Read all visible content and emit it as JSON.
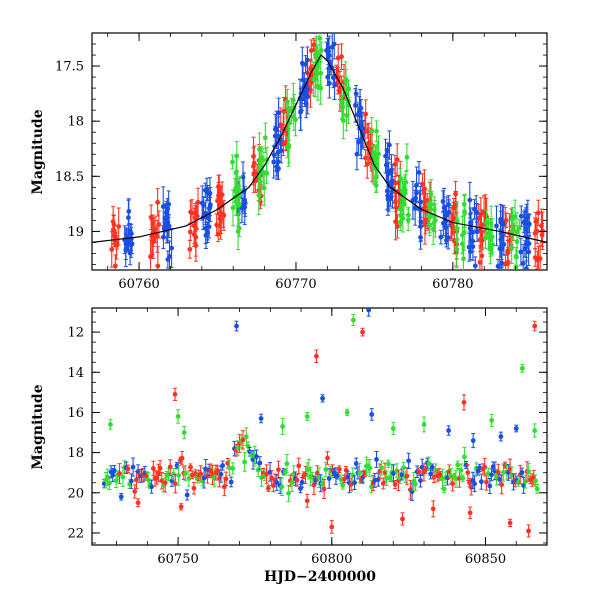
{
  "chart_data": [
    {
      "type": "scatter",
      "panel": "top",
      "title": "",
      "xlabel": "",
      "ylabel": "Magnitude",
      "xlim": [
        60757,
        60786
      ],
      "ylim": [
        19.35,
        17.2
      ],
      "y_inverted": true,
      "xticks": [
        60760,
        60770,
        60780
      ],
      "yticks": [
        17.5,
        18,
        18.5,
        19
      ],
      "ytick_labels": [
        "17.5",
        "18",
        "18.5",
        "19"
      ],
      "grid": false,
      "legend": "none",
      "series": [
        {
          "color": "#ff3322",
          "cluster_days": [
            60758.5,
            60761.0,
            60763.5,
            60765.2,
            60767.5,
            60769.3,
            60771.0,
            60772.8,
            60774.6,
            60776.5,
            60778.3,
            60780.1,
            60781.9,
            60783.6,
            60785.5
          ]
        },
        {
          "color": "#1a4fe0",
          "cluster_days": [
            60759.3,
            60761.8,
            60764.3,
            60766.5,
            60768.8,
            60770.5,
            60772.2,
            60774.0,
            60775.9,
            60777.7,
            60779.5,
            60781.3,
            60783.0,
            60784.6
          ]
        },
        {
          "color": "#33dd33",
          "cluster_days": [
            60766.2,
            60767.9,
            60769.7,
            60771.4,
            60773.2,
            60775.1,
            60776.9,
            60778.7,
            60780.5,
            60782.3,
            60784.0
          ]
        }
      ],
      "model_curve": {
        "color": "#000000",
        "x": [
          60757,
          60760,
          60763,
          60765,
          60767,
          60768,
          60769,
          60770,
          60771,
          60771.6,
          60772,
          60773,
          60774,
          60775,
          60776,
          60778,
          60780,
          60783,
          60786
        ],
        "y": [
          19.1,
          19.05,
          18.95,
          18.8,
          18.6,
          18.4,
          18.15,
          17.85,
          17.55,
          17.4,
          17.45,
          17.7,
          18.05,
          18.4,
          18.6,
          18.8,
          18.92,
          19.0,
          19.1
        ]
      }
    },
    {
      "type": "scatter",
      "panel": "bottom",
      "title": "",
      "xlabel": "HJD−2400000",
      "ylabel": "Magnitude",
      "xlim": [
        60722,
        60870
      ],
      "ylim": [
        22.6,
        10.8
      ],
      "y_inverted": true,
      "xticks": [
        60750,
        60800,
        60850
      ],
      "yticks": [
        12,
        14,
        16,
        18,
        20,
        22
      ],
      "ytick_labels": [
        "12",
        "14",
        "16",
        "18",
        "20",
        "22"
      ],
      "grid": false,
      "legend": "none",
      "series": [
        {
          "color": "#1a4fe0",
          "outliers": [
            [
              60769,
              11.7
            ],
            [
              60812,
              10.9
            ],
            [
              60797,
              15.3
            ],
            [
              60777,
              16.3
            ],
            [
              60813,
              16.1
            ],
            [
              60838,
              16.9
            ],
            [
              60846,
              17.4
            ],
            [
              60855,
              17.2
            ],
            [
              60860,
              16.8
            ]
          ]
        },
        {
          "color": "#33dd33",
          "outliers": [
            [
              60807,
              11.4
            ],
            [
              60862,
              13.8
            ],
            [
              60750,
              16.2
            ],
            [
              60752,
              17.0
            ],
            [
              60784,
              16.7
            ],
            [
              60792,
              16.2
            ],
            [
              60805,
              16.0
            ],
            [
              60820,
              16.8
            ],
            [
              60830,
              16.6
            ],
            [
              60852,
              16.4
            ],
            [
              60866,
              16.9
            ],
            [
              60728,
              16.6
            ]
          ]
        },
        {
          "color": "#ff3322",
          "outliers": [
            [
              60810,
              12.0
            ],
            [
              60866,
              11.7
            ],
            [
              60795,
              13.2
            ],
            [
              60749,
              15.1
            ],
            [
              60843,
              15.5
            ],
            [
              60751,
              20.7
            ],
            [
              60800,
              21.7
            ],
            [
              60823,
              21.3
            ],
            [
              60833,
              20.8
            ],
            [
              60845,
              21.0
            ],
            [
              60858,
              21.5
            ],
            [
              60864,
              21.9
            ],
            [
              60792,
              20.4
            ],
            [
              60737,
              20.5
            ]
          ]
        }
      ],
      "model_curve": {
        "color": "#000000"
      }
    }
  ]
}
